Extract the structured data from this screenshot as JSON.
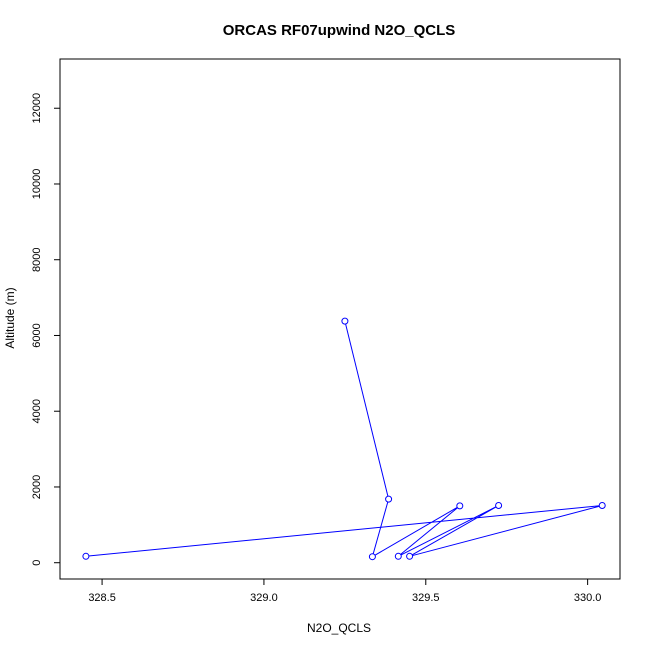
{
  "chart_data": {
    "type": "line",
    "title": "ORCAS RF07upwind N2O_QCLS",
    "xlabel": "N2O_QCLS",
    "ylabel": "Altitude (m)",
    "xlim": [
      328.37,
      330.1
    ],
    "ylim": [
      -430,
      13300
    ],
    "x_ticks": [
      328.5,
      329.0,
      329.5,
      330.0
    ],
    "x_tick_labels": [
      "328.5",
      "329.0",
      "329.5",
      "330.0"
    ],
    "y_ticks": [
      0,
      2000,
      4000,
      6000,
      8000,
      10000,
      12000
    ],
    "y_tick_labels": [
      "0",
      "2000",
      "4000",
      "6000",
      "8000",
      "10000",
      "12000"
    ],
    "grid": false,
    "color": "#0000ff",
    "series": [
      {
        "marker": "open-circle",
        "line": true,
        "points": [
          {
            "x": 329.25,
            "y": 6380
          },
          {
            "x": 329.385,
            "y": 1680
          },
          {
            "x": 329.335,
            "y": 160
          },
          {
            "x": 329.605,
            "y": 1500
          },
          {
            "x": 329.415,
            "y": 170
          },
          {
            "x": 329.725,
            "y": 1510
          },
          {
            "x": 329.45,
            "y": 170
          },
          {
            "x": 330.045,
            "y": 1510
          },
          {
            "x": 328.45,
            "y": 170
          }
        ]
      }
    ]
  }
}
